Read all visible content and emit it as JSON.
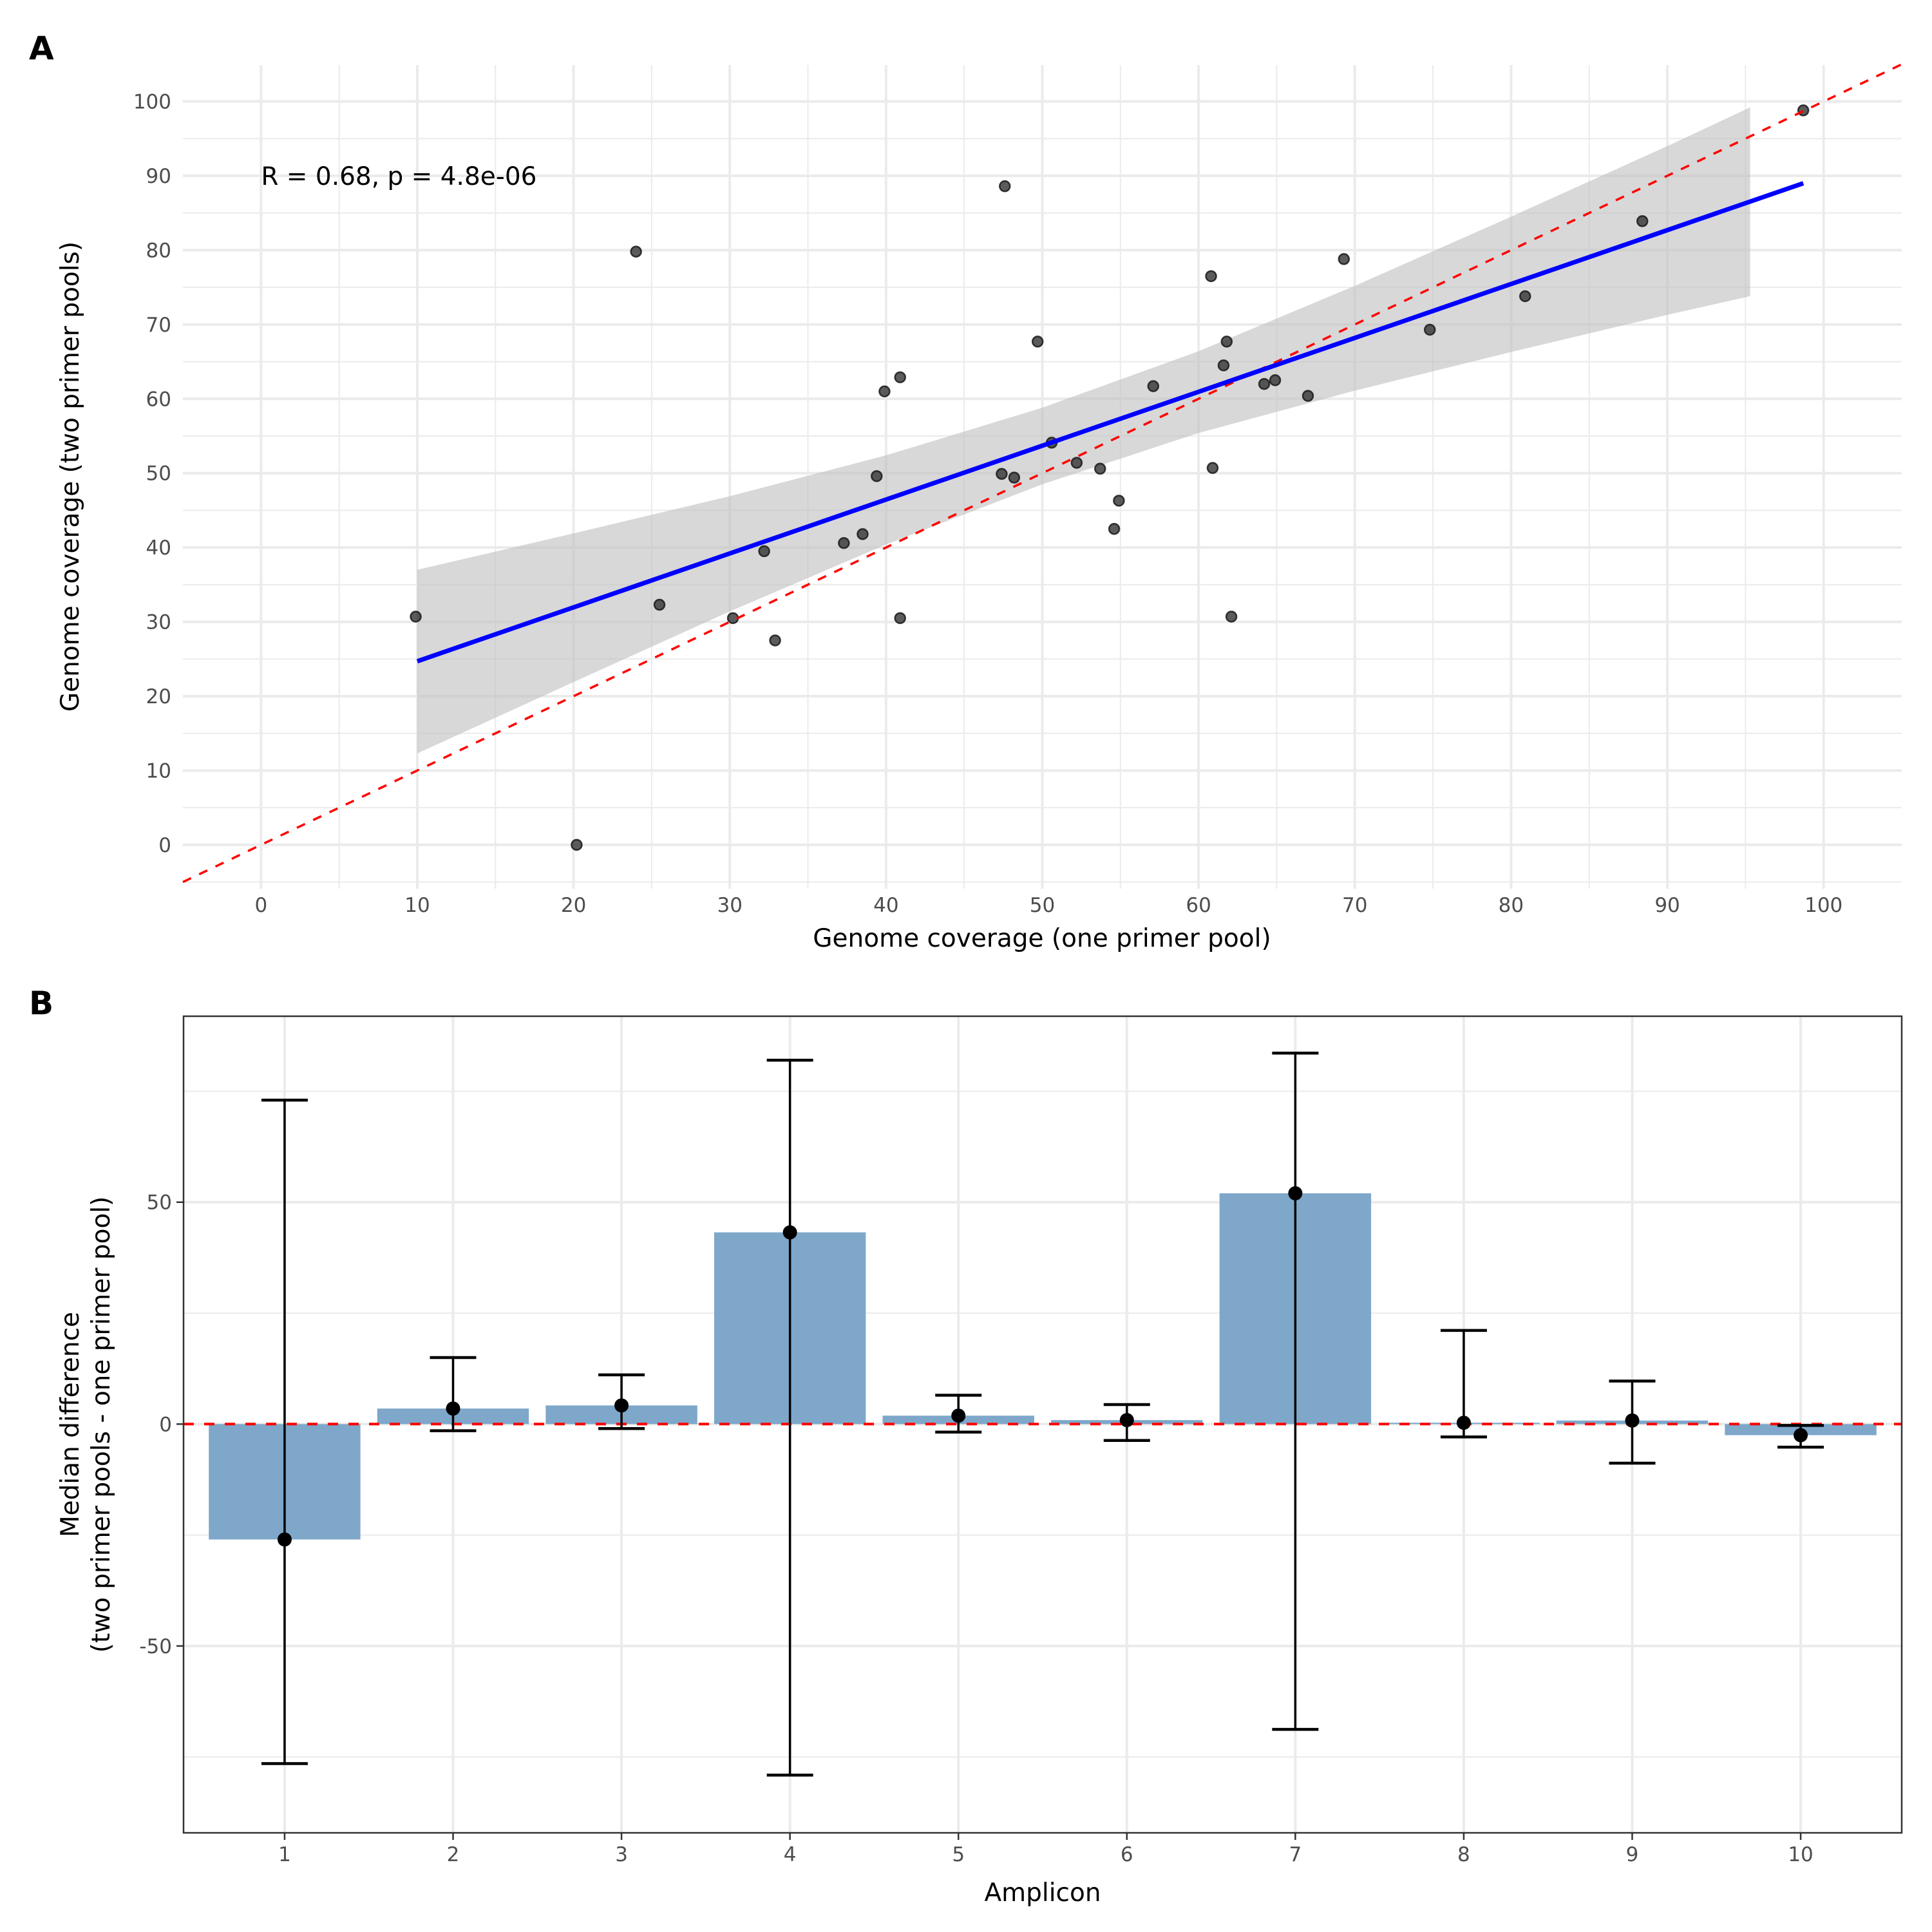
{
  "figure": {
    "panel_a_tag": "A",
    "panel_b_tag": "B"
  },
  "chart_data": [
    {
      "type": "scatter",
      "panel": "A",
      "title": "",
      "xlabel": "Genome coverage (one primer pool)",
      "ylabel": "Genome coverage (two primer pools)",
      "xlim": [
        -5,
        105
      ],
      "ylim": [
        -5.9,
        104.9
      ],
      "xticks": [
        0,
        10,
        20,
        30,
        40,
        50,
        60,
        70,
        80,
        90,
        100
      ],
      "yticks": [
        0,
        10,
        20,
        30,
        40,
        50,
        60,
        70,
        80,
        90,
        100
      ],
      "xtick_labels": [
        "0",
        "10",
        "20",
        "30",
        "40",
        "50",
        "60",
        "70",
        "80",
        "90",
        "100"
      ],
      "ytick_labels": [
        "0",
        "10",
        "20",
        "30",
        "40",
        "50",
        "60",
        "70",
        "80",
        "90",
        "100"
      ],
      "grid": true,
      "annotation": {
        "text": "R = 0.68, p = 4.8e-06",
        "x": 0,
        "y": 90
      },
      "points": [
        {
          "x": 9.9,
          "y": 30.7
        },
        {
          "x": 20.2,
          "y": 0.0
        },
        {
          "x": 24.0,
          "y": 79.8
        },
        {
          "x": 25.5,
          "y": 32.3
        },
        {
          "x": 30.2,
          "y": 30.5
        },
        {
          "x": 32.2,
          "y": 39.5
        },
        {
          "x": 32.9,
          "y": 27.5
        },
        {
          "x": 37.3,
          "y": 40.6
        },
        {
          "x": 38.5,
          "y": 41.8
        },
        {
          "x": 39.4,
          "y": 49.6
        },
        {
          "x": 39.9,
          "y": 61.0
        },
        {
          "x": 40.9,
          "y": 62.9
        },
        {
          "x": 40.9,
          "y": 30.5
        },
        {
          "x": 47.4,
          "y": 49.9
        },
        {
          "x": 47.6,
          "y": 88.6
        },
        {
          "x": 48.2,
          "y": 49.4
        },
        {
          "x": 49.7,
          "y": 67.7
        },
        {
          "x": 50.6,
          "y": 54.1
        },
        {
          "x": 52.2,
          "y": 51.4
        },
        {
          "x": 53.7,
          "y": 50.6
        },
        {
          "x": 54.6,
          "y": 42.5
        },
        {
          "x": 54.9,
          "y": 46.3
        },
        {
          "x": 57.1,
          "y": 61.7
        },
        {
          "x": 60.8,
          "y": 76.5
        },
        {
          "x": 60.9,
          "y": 50.7
        },
        {
          "x": 61.6,
          "y": 64.5
        },
        {
          "x": 61.8,
          "y": 67.7
        },
        {
          "x": 62.1,
          "y": 30.7
        },
        {
          "x": 64.2,
          "y": 62.0
        },
        {
          "x": 64.9,
          "y": 62.5
        },
        {
          "x": 67.0,
          "y": 60.4
        },
        {
          "x": 69.3,
          "y": 78.8
        },
        {
          "x": 74.8,
          "y": 69.3
        },
        {
          "x": 80.9,
          "y": 73.8
        },
        {
          "x": 88.4,
          "y": 83.9
        },
        {
          "x": 98.7,
          "y": 98.8
        }
      ],
      "regression_line": {
        "x": [
          10,
          98.7
        ],
        "y": [
          24.7,
          89.0
        ],
        "color": "#0000ff"
      },
      "confidence_band": {
        "x": [
          10,
          20,
          30,
          40,
          50,
          60,
          70,
          80,
          90,
          95.3
        ],
        "lower": [
          12.3,
          21.9,
          31.4,
          40.4,
          48.5,
          55.4,
          61.1,
          66.3,
          71.3,
          73.8
        ],
        "upper": [
          37.0,
          41.9,
          46.9,
          52.4,
          58.8,
          66.4,
          75.2,
          84.5,
          94.0,
          99.2
        ],
        "color": "#bebebe"
      },
      "identity_line": {
        "slope": 1,
        "intercept": 0,
        "style": "dashed",
        "color": "#ff0000"
      },
      "point_color": "#333333"
    },
    {
      "type": "bar",
      "panel": "B",
      "title": "",
      "xlabel": "Amplicon",
      "ylabel": "Median difference\n(two primer pools - one primer pool)",
      "ylabel_lines": [
        "Median difference",
        "(two primer pools - one primer pool)"
      ],
      "categories": [
        "1",
        "2",
        "3",
        "4",
        "5",
        "6",
        "7",
        "8",
        "9",
        "10"
      ],
      "values": [
        -26.0,
        3.5,
        4.2,
        43.2,
        1.9,
        0.9,
        52.0,
        0.3,
        0.8,
        -2.5
      ],
      "error_upper": [
        73.0,
        15.0,
        11.1,
        82.0,
        6.5,
        4.4,
        83.6,
        21.1,
        9.7,
        -0.3
      ],
      "error_lower": [
        -76.5,
        -1.5,
        -1.0,
        -79.1,
        -1.8,
        -3.7,
        -68.8,
        -2.9,
        -8.8,
        -5.2
      ],
      "xlim": [
        0.4,
        10.6
      ],
      "ylim": [
        -92.1,
        91.9
      ],
      "yticks": [
        -50,
        0,
        50
      ],
      "ytick_labels": [
        "-50",
        "0",
        "50"
      ],
      "bar_width": 0.9,
      "grid": true,
      "reference_line": {
        "y": 0,
        "style": "dashed",
        "color": "#ff0000"
      },
      "bar_color": "#7ea7ca"
    }
  ]
}
